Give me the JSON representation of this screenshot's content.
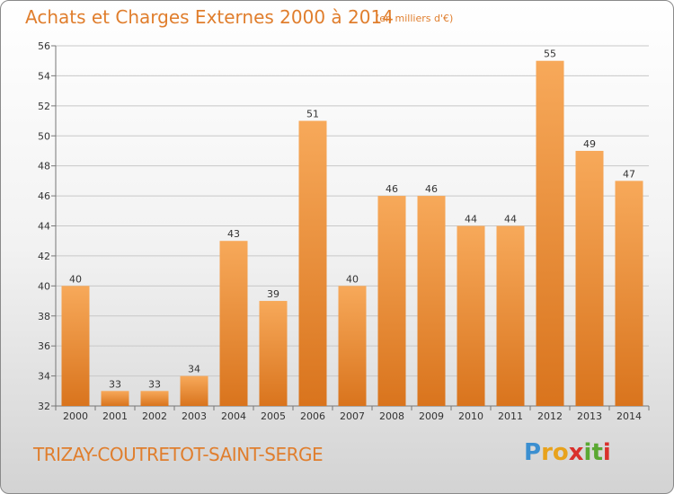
{
  "chart_data": {
    "type": "bar",
    "title": "Achats et Charges Externes 2000 à 2014",
    "subtitle": "(en milliers d'€)",
    "categories": [
      "2000",
      "2001",
      "2002",
      "2003",
      "2004",
      "2005",
      "2006",
      "2007",
      "2008",
      "2009",
      "2010",
      "2011",
      "2012",
      "2013",
      "2014"
    ],
    "values": [
      40,
      33,
      33,
      34,
      43,
      39,
      51,
      40,
      46,
      46,
      44,
      44,
      55,
      49,
      47
    ],
    "ylim": [
      32,
      56
    ],
    "yticks": [
      32,
      34,
      36,
      38,
      40,
      42,
      44,
      46,
      48,
      50,
      52,
      54,
      56
    ],
    "grid": true,
    "bar_color_top": "#f7a95a",
    "bar_color_bottom": "#d9741d"
  },
  "commune": "TRIZAY-COUTRETOT-SAINT-SERGE",
  "logo": {
    "text": "Proxiti",
    "letters": [
      {
        "ch": "P",
        "color": "#3b8fd0"
      },
      {
        "ch": "r",
        "color": "#e8a21c"
      },
      {
        "ch": "o",
        "color": "#e8a21c"
      },
      {
        "ch": "x",
        "color": "#d9302c"
      },
      {
        "ch": "i",
        "color": "#5aa832"
      },
      {
        "ch": "t",
        "color": "#5aa832"
      },
      {
        "ch": "i",
        "color": "#d9302c"
      }
    ]
  },
  "colors": {
    "accent": "#e07e2d"
  }
}
